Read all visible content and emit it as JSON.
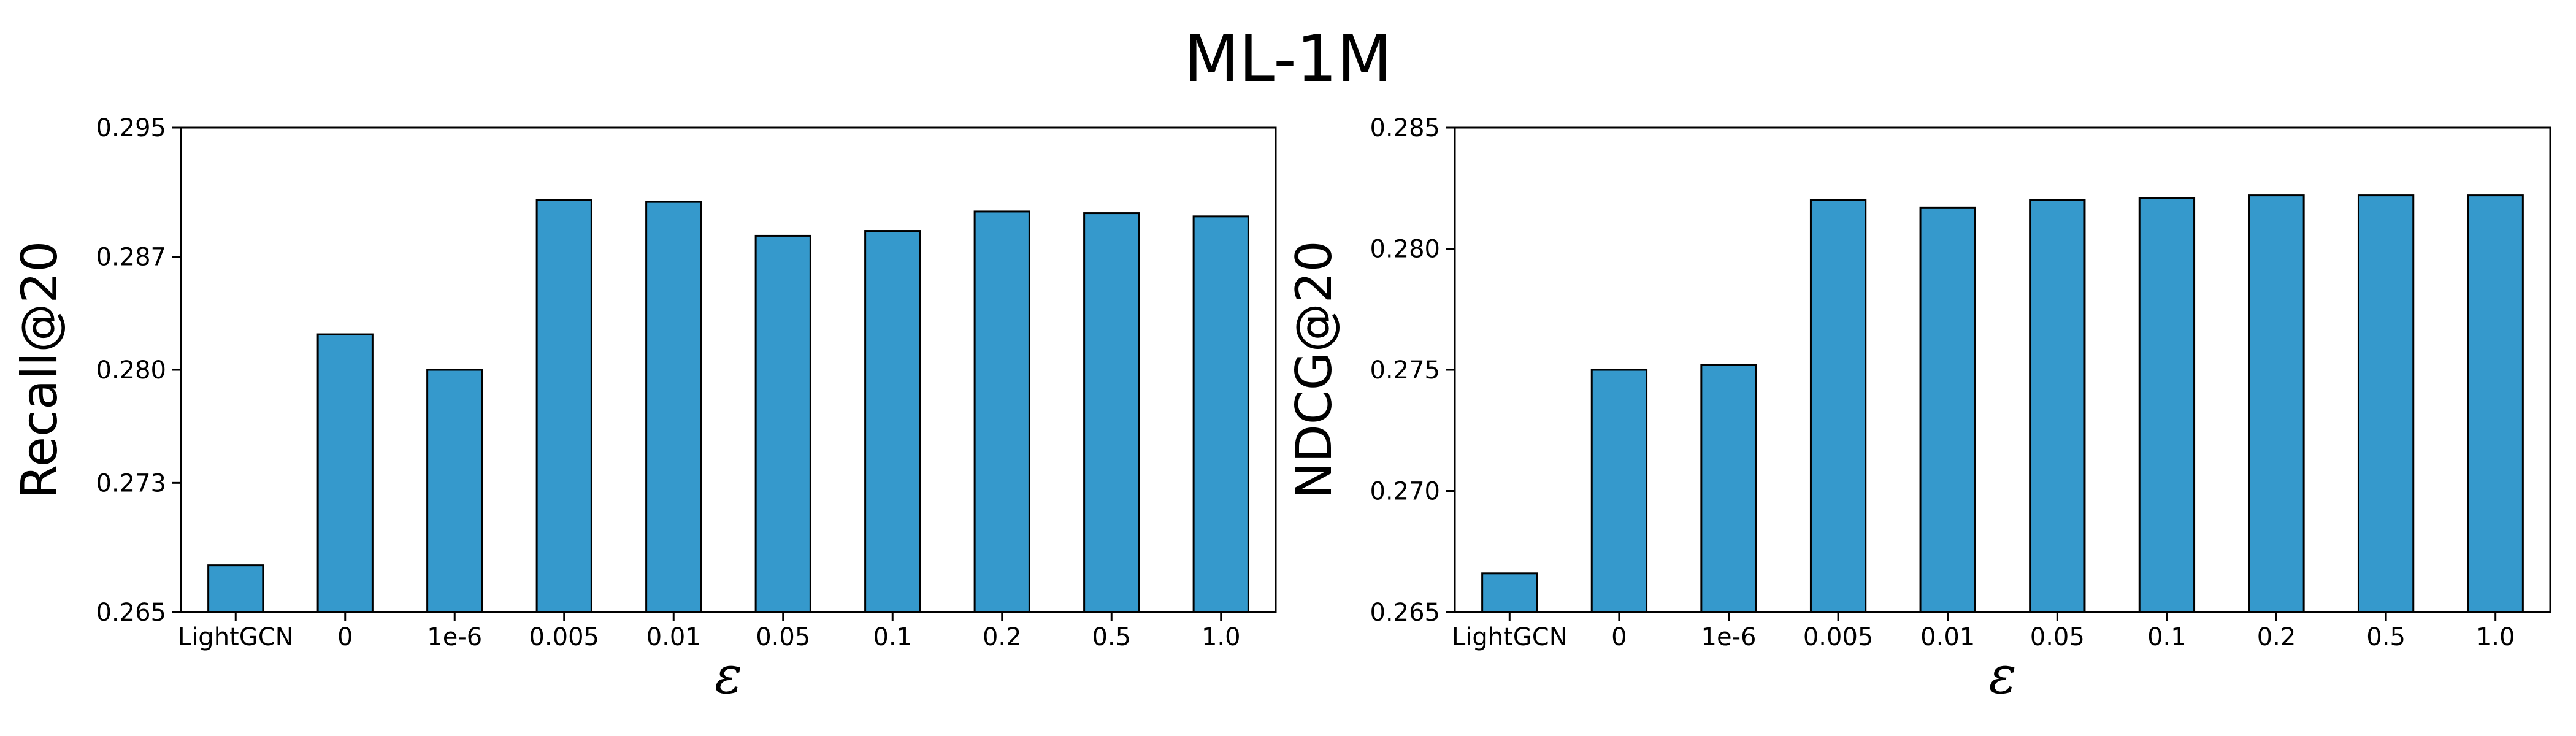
{
  "figure": {
    "title": "ML-1M"
  },
  "style": {
    "bar_color": "#3599cc",
    "edge_color": "#000000"
  },
  "chart_data": [
    {
      "type": "bar",
      "title": "",
      "xlabel": "ε",
      "ylabel": "Recall@20",
      "categories": [
        "LightGCN",
        "0",
        "1e-6",
        "0.005",
        "0.01",
        "0.05",
        "0.1",
        "0.2",
        "0.5",
        "1.0"
      ],
      "values": [
        0.2679,
        0.2822,
        0.28,
        0.2905,
        0.2904,
        0.2883,
        0.2886,
        0.2898,
        0.2897,
        0.2895
      ],
      "ylim": [
        0.265,
        0.295
      ],
      "yticks": [
        0.265,
        0.273,
        0.28,
        0.287,
        0.295
      ],
      "ytick_labels": [
        "0.265",
        "0.273",
        "0.280",
        "0.287",
        "0.295"
      ],
      "grid": false
    },
    {
      "type": "bar",
      "title": "",
      "xlabel": "ε",
      "ylabel": "NDCG@20",
      "categories": [
        "LightGCN",
        "0",
        "1e-6",
        "0.005",
        "0.01",
        "0.05",
        "0.1",
        "0.2",
        "0.5",
        "1.0"
      ],
      "values": [
        0.2666,
        0.275,
        0.2752,
        0.282,
        0.2817,
        0.282,
        0.2821,
        0.2822,
        0.2822,
        0.2822
      ],
      "ylim": [
        0.265,
        0.285
      ],
      "yticks": [
        0.265,
        0.27,
        0.275,
        0.28,
        0.285
      ],
      "ytick_labels": [
        "0.265",
        "0.270",
        "0.275",
        "0.280",
        "0.285"
      ],
      "grid": false
    }
  ]
}
